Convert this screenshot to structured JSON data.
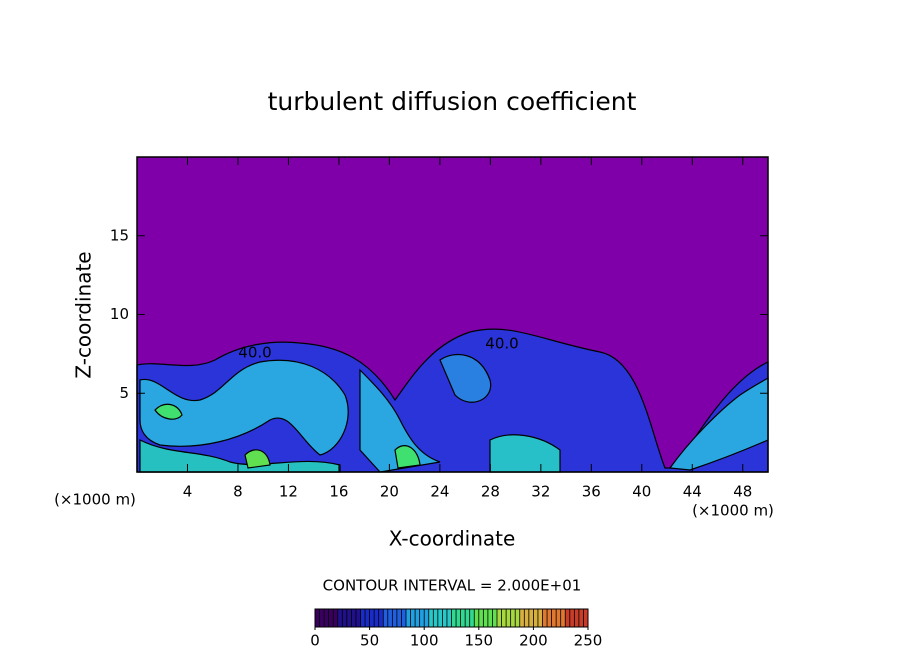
{
  "chart_data": {
    "type": "contour",
    "title": "turbulent diffusion coefficient",
    "x_label": "X-coordinate",
    "y_label": "Z-coordinate",
    "unit_labels": [
      "(×1000 m)",
      "(×1000 m)"
    ],
    "xlim": [
      0,
      50
    ],
    "xticks": [
      4,
      8,
      12,
      16,
      20,
      24,
      28,
      32,
      36,
      40,
      44,
      48
    ],
    "ylim": [
      0,
      20
    ],
    "yticks": [
      5,
      10,
      15
    ],
    "contour_labels": [
      "40.0",
      "40.0"
    ],
    "contour_interval": "CONTOUR INTERVAL = 2.000E+01",
    "background_color": "#7f00a8",
    "colorbar": {
      "lim": [
        0,
        250
      ],
      "ticks": [
        0,
        50,
        100,
        150,
        200,
        250
      ],
      "colors": [
        "#3a0060",
        "#20108a",
        "#1a2cc8",
        "#2060e0",
        "#20a0e0",
        "#28c8c8",
        "#30d890",
        "#60e050",
        "#a8d840",
        "#d8b040",
        "#e07830",
        "#c83c28"
      ]
    }
  }
}
